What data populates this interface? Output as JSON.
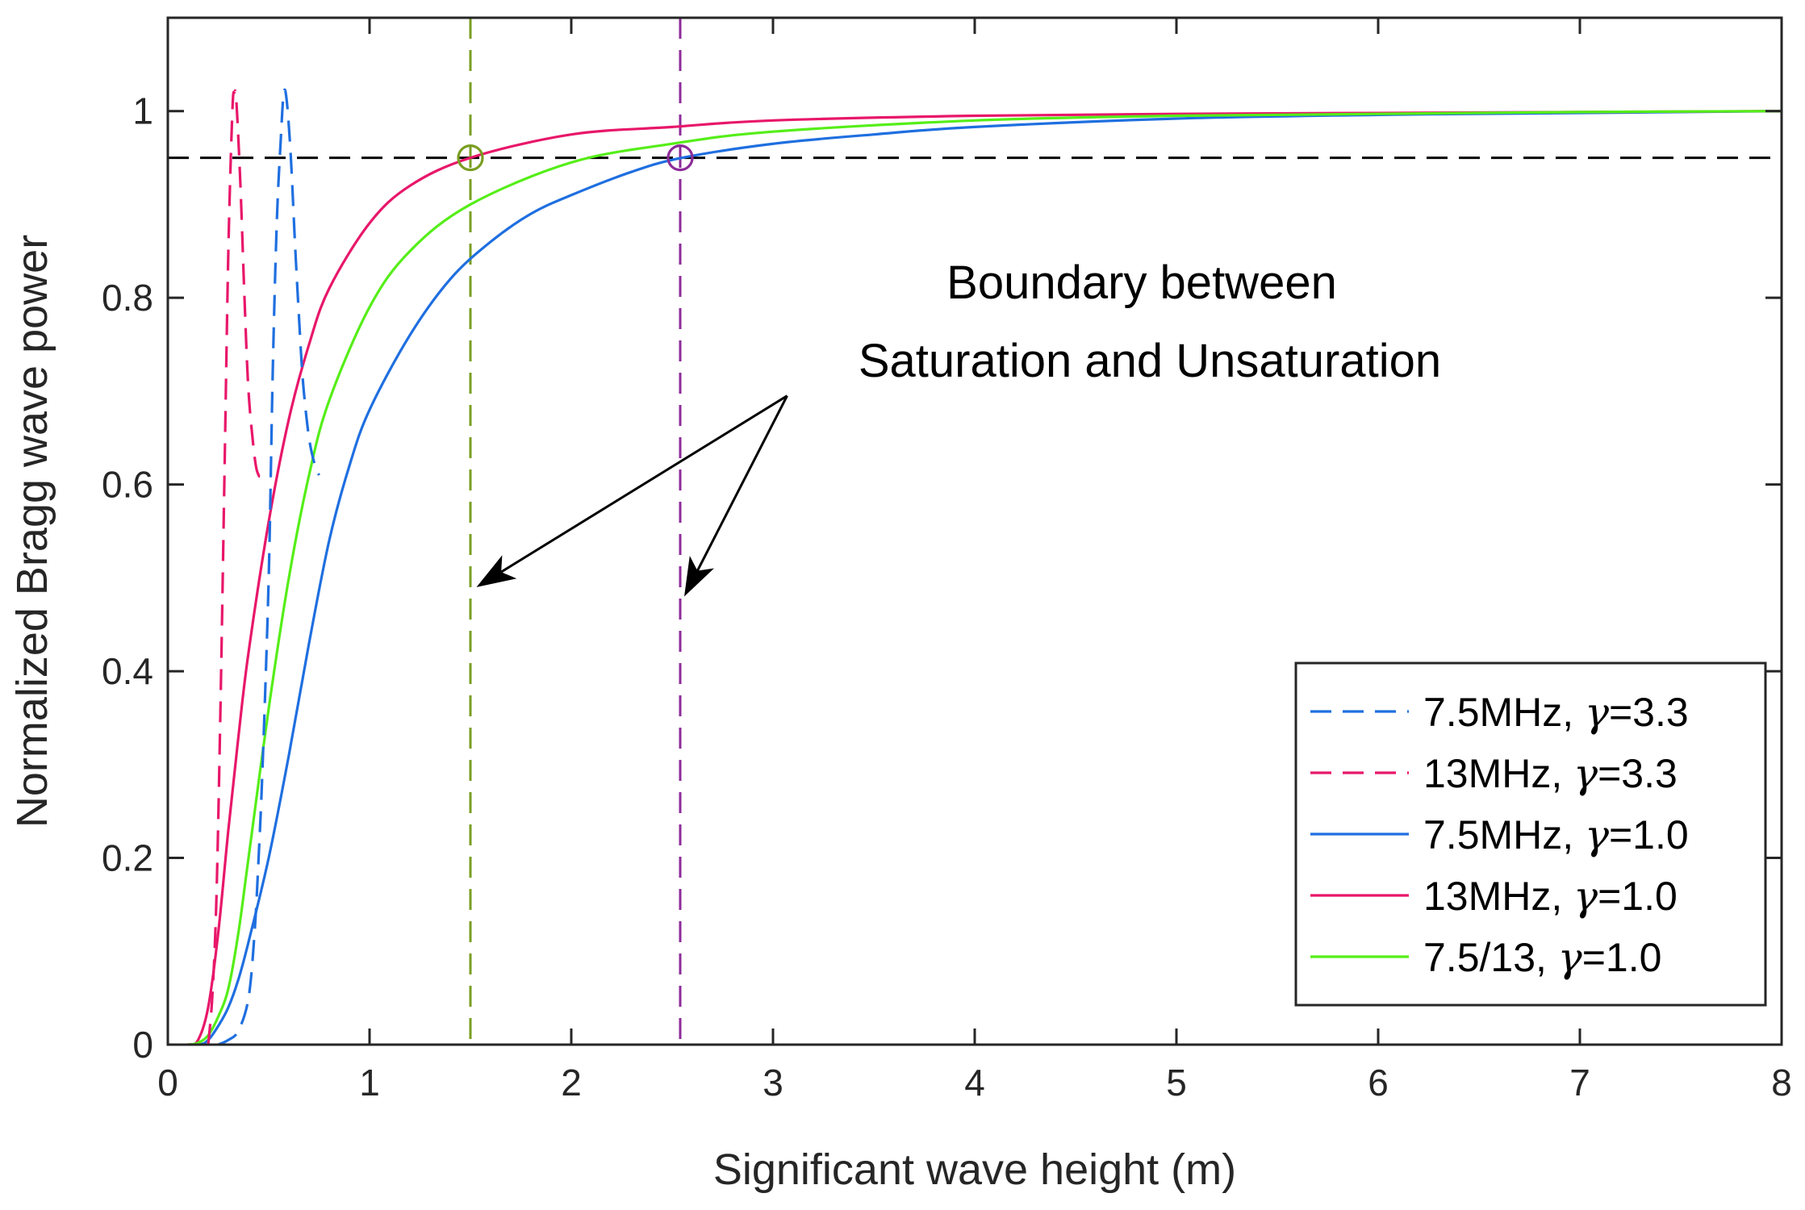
{
  "chart_data": {
    "type": "line",
    "title": "",
    "xlabel": "Significant wave height (m)",
    "ylabel": "Normalized Bragg wave power",
    "xlim": [
      0,
      8
    ],
    "ylim": [
      0,
      1.1
    ],
    "xticks": [
      0,
      1,
      2,
      3,
      4,
      5,
      6,
      7,
      8
    ],
    "xtick_labels": [
      "0",
      "1",
      "2",
      "3",
      "4",
      "5",
      "6",
      "7",
      "8"
    ],
    "yticks": [
      0,
      0.2,
      0.4,
      0.6,
      0.8,
      1
    ],
    "ytick_labels": [
      "0",
      "0.2",
      "0.4",
      "0.6",
      "0.8",
      "1"
    ],
    "grid": false,
    "legend_position": "bottom-right",
    "colors": {
      "blue": "#1f6fe0",
      "crimson": "#e8176a",
      "green": "#55ee18",
      "olive": "#7a9e22",
      "purple": "#8c2c99",
      "black": "#000000",
      "axis": "#262626"
    },
    "series": [
      {
        "name": "7.5MHz, γ=3.3",
        "label_main": "7.5MHz, ",
        "label_symbol": "γ",
        "label_value": "=3.3",
        "style": "dashed",
        "color": "#1f6fe0",
        "x": [
          0.25,
          0.3,
          0.35,
          0.4,
          0.43,
          0.45,
          0.47,
          0.5,
          0.52,
          0.54,
          0.56,
          0.575,
          0.59,
          0.61,
          0.63,
          0.65,
          0.67,
          0.7,
          0.73,
          0.75
        ],
        "y": [
          0.0,
          0.005,
          0.015,
          0.05,
          0.12,
          0.2,
          0.3,
          0.5,
          0.72,
          0.88,
          0.97,
          1.02,
          1.01,
          0.95,
          0.86,
          0.78,
          0.71,
          0.65,
          0.62,
          0.61
        ]
      },
      {
        "name": "13MHz, γ=3.3",
        "label_main": "13MHz, ",
        "label_symbol": "γ",
        "label_value": "=3.3",
        "style": "dashed",
        "color": "#e8176a",
        "x": [
          0.2,
          0.22,
          0.24,
          0.26,
          0.28,
          0.3,
          0.32,
          0.33,
          0.34,
          0.36,
          0.38,
          0.4,
          0.43,
          0.45,
          0.47
        ],
        "y": [
          0.0,
          0.05,
          0.15,
          0.35,
          0.6,
          0.85,
          1.0,
          1.02,
          1.01,
          0.92,
          0.8,
          0.7,
          0.63,
          0.61,
          0.61
        ]
      },
      {
        "name": "7.5MHz, γ=1.0",
        "label_main": "7.5MHz, ",
        "label_symbol": "γ",
        "label_value": "=1.0",
        "style": "solid",
        "color": "#1f6fe0",
        "x": [
          0,
          0.15,
          0.2,
          0.25,
          0.3,
          0.35,
          0.4,
          0.5,
          0.6,
          0.7,
          0.8,
          0.9,
          1.0,
          1.2,
          1.4,
          1.6,
          1.8,
          2.0,
          2.3,
          2.55,
          3.0,
          3.5,
          4.0,
          5.0,
          6.0,
          7.0,
          8.0
        ],
        "y": [
          0,
          0,
          0.005,
          0.02,
          0.04,
          0.07,
          0.11,
          0.2,
          0.31,
          0.43,
          0.54,
          0.62,
          0.68,
          0.76,
          0.82,
          0.86,
          0.89,
          0.91,
          0.935,
          0.95,
          0.965,
          0.975,
          0.983,
          0.992,
          0.996,
          0.998,
          1.0
        ]
      },
      {
        "name": "13MHz, γ=1.0",
        "label_main": "13MHz, ",
        "label_symbol": "γ",
        "label_value": "=1.0",
        "style": "solid",
        "color": "#e8176a",
        "x": [
          0,
          0.1,
          0.15,
          0.2,
          0.25,
          0.3,
          0.35,
          0.4,
          0.5,
          0.6,
          0.7,
          0.8,
          1.0,
          1.2,
          1.5,
          2.0,
          2.5,
          3.0,
          4.0,
          5.0,
          6.0,
          7.0,
          8.0
        ],
        "y": [
          0,
          0,
          0.005,
          0.04,
          0.12,
          0.23,
          0.33,
          0.42,
          0.56,
          0.67,
          0.75,
          0.81,
          0.88,
          0.92,
          0.95,
          0.975,
          0.983,
          0.99,
          0.995,
          0.997,
          0.998,
          0.999,
          1.0
        ]
      },
      {
        "name": "7.5/13, γ=1.0",
        "label_main": "7.5/13, ",
        "label_symbol": "γ",
        "label_value": "=1.0",
        "style": "solid",
        "color": "#55ee18",
        "x": [
          0,
          0.1,
          0.15,
          0.2,
          0.25,
          0.3,
          0.35,
          0.4,
          0.5,
          0.6,
          0.7,
          0.8,
          1.0,
          1.2,
          1.5,
          2.0,
          2.5,
          3.0,
          4.0,
          5.0,
          6.0,
          7.0,
          8.0
        ],
        "y": [
          0,
          0,
          0.002,
          0.01,
          0.03,
          0.06,
          0.12,
          0.2,
          0.36,
          0.5,
          0.61,
          0.69,
          0.79,
          0.85,
          0.9,
          0.945,
          0.965,
          0.978,
          0.99,
          0.995,
          0.997,
          0.999,
          1.0
        ]
      }
    ],
    "reference_lines": [
      {
        "orientation": "horizontal",
        "value": 0.95,
        "style": "dashed",
        "color": "#000000"
      },
      {
        "orientation": "vertical",
        "value": 1.5,
        "style": "dashed",
        "color": "#7a9e22"
      },
      {
        "orientation": "vertical",
        "value": 2.54,
        "style": "dashed",
        "color": "#8c2c99"
      }
    ],
    "markers": [
      {
        "x": 1.5,
        "y": 0.95,
        "shape": "circle",
        "color": "#7a9e22"
      },
      {
        "x": 2.54,
        "y": 0.95,
        "shape": "circle",
        "color": "#8c2c99"
      }
    ],
    "annotation": {
      "line1": "Boundary between",
      "line2": "Saturation and Unsaturation",
      "arrow_tail": {
        "x": 3.07,
        "y": 0.695
      },
      "arrow_targets": [
        {
          "x": 1.53,
          "y": 0.49
        },
        {
          "x": 2.56,
          "y": 0.48
        }
      ]
    }
  }
}
